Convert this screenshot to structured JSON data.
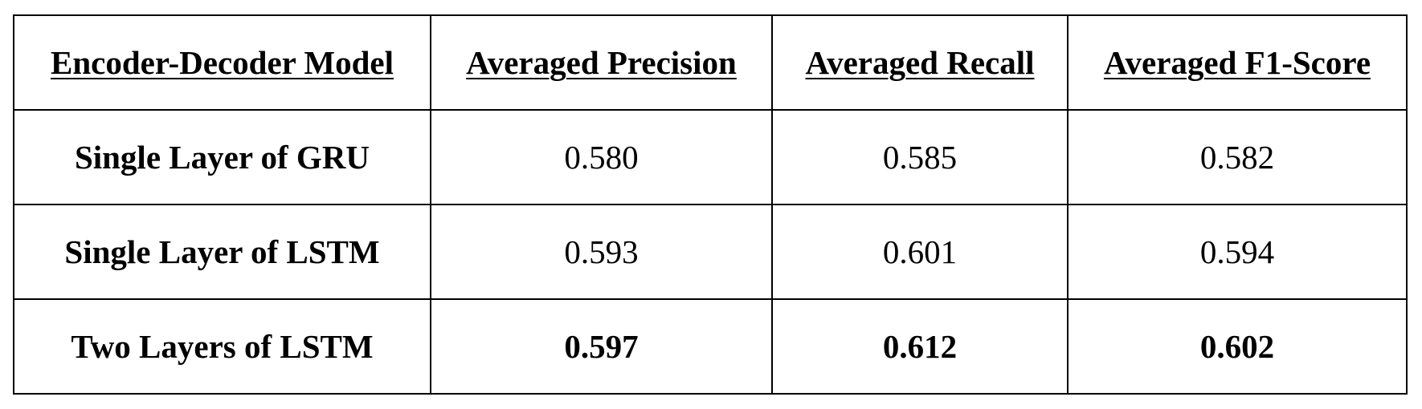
{
  "table": {
    "headers": [
      "Encoder-Decoder Model",
      "Averaged Precision",
      "Averaged Recall",
      "Averaged F1-Score"
    ],
    "rows": [
      {
        "model": "Single Layer of GRU",
        "precision": "0.580",
        "recall": "0.585",
        "f1": "0.582",
        "bold": false
      },
      {
        "model": "Single Layer of LSTM",
        "precision": "0.593",
        "recall": "0.601",
        "f1": "0.594",
        "bold": false
      },
      {
        "model": "Two Layers of LSTM",
        "precision": "0.597",
        "recall": "0.612",
        "f1": "0.602",
        "bold": true
      }
    ]
  },
  "colors": {
    "text": "#000000",
    "border": "#000000",
    "background": "#ffffff"
  }
}
